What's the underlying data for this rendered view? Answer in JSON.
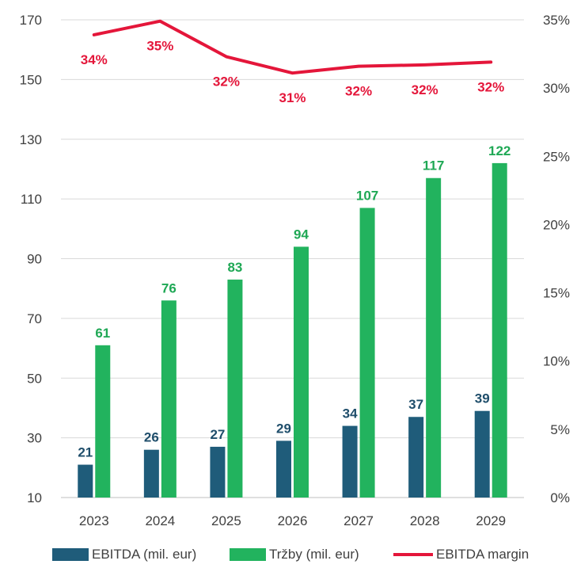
{
  "chart_data": {
    "type": "bar",
    "categories": [
      "2023",
      "2024",
      "2025",
      "2026",
      "2027",
      "2028",
      "2029"
    ],
    "series": [
      {
        "name": "EBITDA (mil. eur)",
        "kind": "bar",
        "axis": "left",
        "color": "#1F5C7A",
        "values": [
          21,
          26,
          27,
          29,
          34,
          37,
          39
        ],
        "labelColor": "#1F4E6B"
      },
      {
        "name": "Tržby (mil. eur)",
        "kind": "bar",
        "axis": "left",
        "color": "#22B35E",
        "values": [
          61,
          76,
          83,
          94,
          107,
          117,
          122
        ],
        "labelColor": "#1FA855"
      },
      {
        "name": "EBITDA margin",
        "kind": "line",
        "axis": "right",
        "color": "#E4163A",
        "values": [
          0.339,
          0.349,
          0.323,
          0.311,
          0.316,
          0.317,
          0.319
        ],
        "labels": [
          "34%",
          "35%",
          "32%",
          "31%",
          "32%",
          "32%",
          "32%"
        ],
        "labelColor": "#E4163A"
      }
    ],
    "y_left": {
      "min": 10,
      "max": 170,
      "ticks": [
        "10",
        "30",
        "50",
        "70",
        "90",
        "110",
        "130",
        "150",
        "170"
      ]
    },
    "y_right": {
      "min": 0,
      "max": 0.35,
      "ticks": [
        "0%",
        "5%",
        "10%",
        "15%",
        "20%",
        "25%",
        "30%",
        "35%"
      ]
    },
    "grid": true,
    "legend": "bottom"
  }
}
